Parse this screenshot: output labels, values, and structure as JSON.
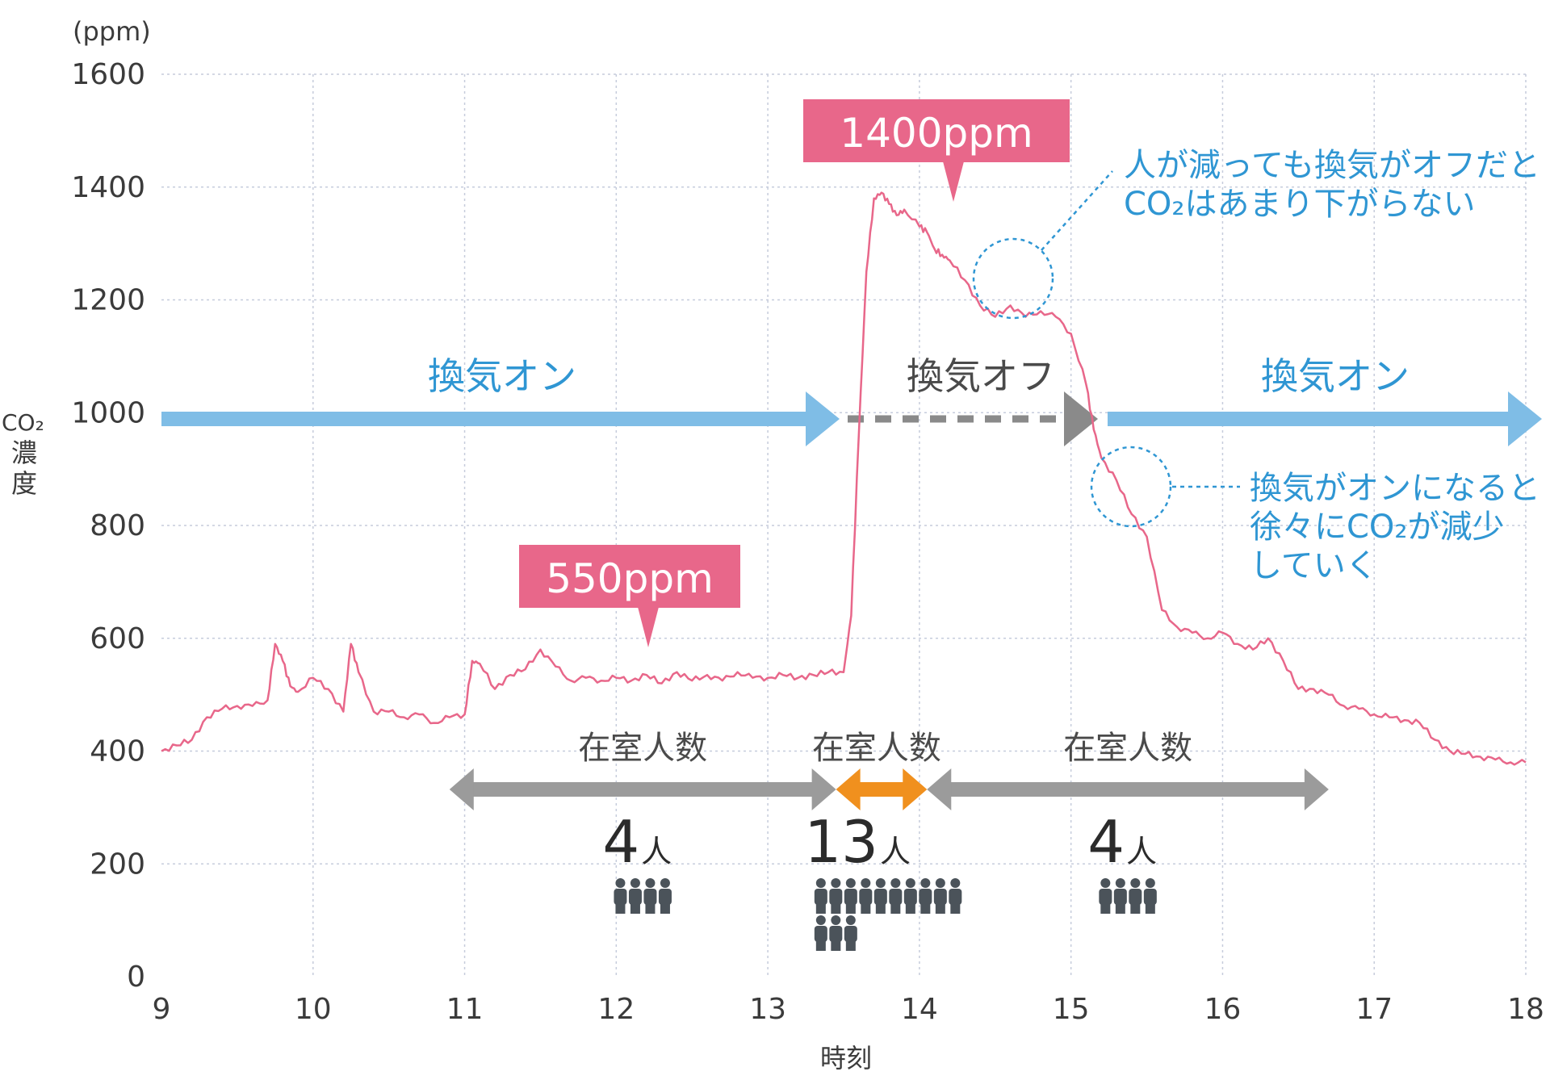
{
  "chart_data": {
    "type": "line",
    "y_unit": "(ppm)",
    "ylabel_line1": "CO₂",
    "ylabel_line2": "濃",
    "ylabel_line3": "度",
    "xlabel": "時刻",
    "ylim": [
      0,
      1600
    ],
    "xlim": [
      9,
      18
    ],
    "y_ticks": [
      0,
      200,
      400,
      600,
      800,
      1000,
      1200,
      1400,
      1600
    ],
    "x_ticks": [
      9,
      10,
      11,
      12,
      13,
      14,
      15,
      16,
      17,
      18
    ],
    "grid": true,
    "series": [
      {
        "color": "#e8678a",
        "x": [
          9.0,
          9.1,
          9.2,
          9.3,
          9.4,
          9.5,
          9.6,
          9.7,
          9.75,
          9.8,
          9.85,
          9.9,
          10.0,
          10.1,
          10.2,
          10.25,
          10.3,
          10.4,
          10.5,
          10.6,
          10.7,
          10.8,
          10.9,
          11.0,
          11.05,
          11.1,
          11.2,
          11.3,
          11.4,
          11.5,
          11.6,
          11.7,
          11.8,
          11.9,
          12.0,
          12.1,
          12.2,
          12.3,
          12.4,
          12.5,
          12.6,
          12.7,
          12.8,
          12.9,
          13.0,
          13.1,
          13.2,
          13.3,
          13.4,
          13.5,
          13.55,
          13.6,
          13.65,
          13.7,
          13.75,
          13.8,
          13.85,
          13.9,
          14.0,
          14.05,
          14.1,
          14.15,
          14.2,
          14.3,
          14.4,
          14.5,
          14.6,
          14.7,
          14.8,
          14.9,
          15.0,
          15.1,
          15.15,
          15.2,
          15.3,
          15.4,
          15.5,
          15.6,
          15.7,
          15.8,
          15.9,
          16.0,
          16.1,
          16.2,
          16.3,
          16.4,
          16.5,
          16.6,
          16.7,
          16.8,
          16.9,
          17.0,
          17.1,
          17.2,
          17.3,
          17.4,
          17.5,
          17.6,
          17.7,
          17.8,
          17.9,
          18.0
        ],
        "y": [
          400,
          410,
          420,
          460,
          475,
          480,
          480,
          490,
          590,
          560,
          515,
          505,
          530,
          510,
          470,
          590,
          540,
          470,
          470,
          460,
          465,
          450,
          460,
          465,
          560,
          555,
          510,
          535,
          545,
          580,
          550,
          525,
          530,
          525,
          530,
          525,
          535,
          520,
          540,
          525,
          535,
          525,
          540,
          530,
          530,
          535,
          530,
          535,
          540,
          540,
          640,
          960,
          1250,
          1380,
          1390,
          1370,
          1350,
          1360,
          1330,
          1320,
          1290,
          1280,
          1270,
          1235,
          1190,
          1170,
          1190,
          1170,
          1180,
          1170,
          1140,
          1050,
          970,
          920,
          880,
          820,
          780,
          650,
          620,
          610,
          600,
          610,
          590,
          580,
          600,
          560,
          510,
          510,
          500,
          480,
          475,
          465,
          460,
          455,
          450,
          420,
          400,
          395,
          390,
          385,
          380,
          380
        ]
      }
    ],
    "annotations": {
      "peak_callout": "1400ppm",
      "base_callout": "550ppm",
      "vent_on_left": "換気オン",
      "vent_off": "換気オフ",
      "vent_on_right": "換気オン",
      "note_top_line1": "人が減っても換気がオフだと",
      "note_top_line2": "CO₂はあまり下がらない",
      "note_bottom_line1": "換気がオンになると",
      "note_bottom_line2": "徐々にCO₂が減少",
      "note_bottom_line3": "していく",
      "occupancy": [
        {
          "label": "在室人数",
          "count": "4",
          "unit": "人",
          "people": 4,
          "color": "#9b9b9b",
          "from": 10.9,
          "to": 13.45
        },
        {
          "label": "在室人数",
          "count": "13",
          "unit": "人",
          "people": 13,
          "color": "#f0901e",
          "from": 13.45,
          "to": 14.05
        },
        {
          "label": "在室人数",
          "count": "4",
          "unit": "人",
          "people": 4,
          "color": "#9b9b9b",
          "from": 14.05,
          "to": 16.7
        }
      ]
    },
    "colors": {
      "line": "#e8678a",
      "callout_bg": "#e8678a",
      "vent_on": "#7fbde6",
      "vent_off": "#8a8a8a",
      "note_blue": "#2f96d3",
      "person": "#4b535a"
    }
  }
}
